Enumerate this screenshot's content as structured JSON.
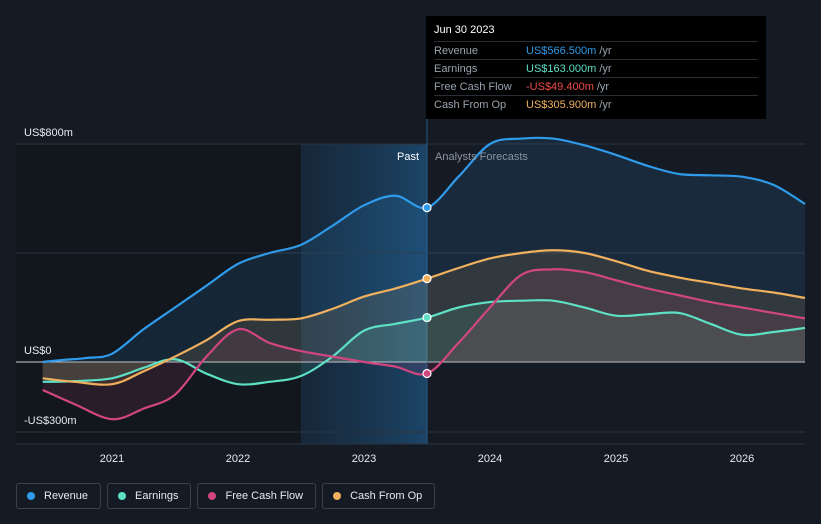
{
  "chart_data": {
    "type": "line",
    "title": "",
    "xlabel": "",
    "ylabel": "",
    "ylim": [
      -300,
      800
    ],
    "y_tick_labels": [
      {
        "value": 800,
        "label": "US$800m"
      },
      {
        "value": 0,
        "label": "US$0"
      },
      {
        "value": -300,
        "label": "-US$300m"
      }
    ],
    "x_range": [
      2020.35,
      2026.5
    ],
    "x_ticks": [
      {
        "value": 2021,
        "label": "2021"
      },
      {
        "value": 2022,
        "label": "2022"
      },
      {
        "value": 2023,
        "label": "2023"
      },
      {
        "value": 2024,
        "label": "2024"
      },
      {
        "value": 2025,
        "label": "2025"
      },
      {
        "value": 2026,
        "label": "2026"
      }
    ],
    "divider_x": 2023.5,
    "highlight_start_x": 2022.5,
    "past_label": "Past",
    "forecast_label": "Analysts Forecasts",
    "series": [
      {
        "name": "Revenue",
        "color": "#2f9bea",
        "x": [
          2020.45,
          2020.6,
          2020.8,
          2021.0,
          2021.25,
          2021.5,
          2021.75,
          2022.0,
          2022.25,
          2022.5,
          2022.75,
          2023.0,
          2023.25,
          2023.5,
          2023.75,
          2024.0,
          2024.25,
          2024.5,
          2024.75,
          2025.0,
          2025.25,
          2025.5,
          2025.75,
          2026.0,
          2026.25,
          2026.5
        ],
        "values": [
          0,
          7,
          15,
          30,
          120,
          200,
          280,
          360,
          400,
          430,
          500,
          575,
          610,
          566.5,
          680,
          800,
          820,
          820,
          795,
          760,
          720,
          690,
          685,
          680,
          650,
          580
        ]
      },
      {
        "name": "Earnings",
        "color": "#5de0c4",
        "x": [
          2020.45,
          2020.7,
          2021.0,
          2021.25,
          2021.5,
          2021.75,
          2022.0,
          2022.25,
          2022.5,
          2022.75,
          2023.0,
          2023.25,
          2023.5,
          2023.75,
          2024.0,
          2024.25,
          2024.5,
          2024.75,
          2025.0,
          2025.25,
          2025.5,
          2025.75,
          2026.0,
          2026.25,
          2026.5
        ],
        "values": [
          -85,
          -82,
          -70,
          -25,
          10,
          -50,
          -95,
          -85,
          -60,
          20,
          115,
          140,
          163,
          200,
          220,
          225,
          225,
          200,
          170,
          175,
          180,
          140,
          100,
          110,
          125
        ]
      },
      {
        "name": "Free Cash Flow",
        "color": "#d1467f",
        "x": [
          2020.45,
          2020.7,
          2021.0,
          2021.25,
          2021.5,
          2021.75,
          2022.0,
          2022.25,
          2022.5,
          2022.75,
          2023.0,
          2023.25,
          2023.5,
          2023.75,
          2024.0,
          2024.25,
          2024.5,
          2024.75,
          2025.0,
          2025.25,
          2025.5,
          2025.75,
          2026.0,
          2026.25,
          2026.5
        ],
        "values": [
          -120,
          -180,
          -245,
          -200,
          -140,
          20,
          120,
          70,
          40,
          20,
          0,
          -20,
          -49.4,
          70,
          200,
          320,
          340,
          330,
          300,
          270,
          245,
          220,
          200,
          180,
          160
        ]
      },
      {
        "name": "Cash From Op",
        "color": "#f0b05e",
        "x": [
          2020.45,
          2020.7,
          2021.0,
          2021.25,
          2021.5,
          2021.75,
          2022.0,
          2022.25,
          2022.5,
          2022.75,
          2023.0,
          2023.25,
          2023.5,
          2023.75,
          2024.0,
          2024.25,
          2024.5,
          2024.75,
          2025.0,
          2025.25,
          2025.5,
          2025.75,
          2026.0,
          2026.25,
          2026.5
        ],
        "values": [
          -70,
          -85,
          -95,
          -40,
          20,
          80,
          150,
          155,
          160,
          195,
          240,
          270,
          305.9,
          345,
          380,
          400,
          410,
          400,
          370,
          335,
          310,
          290,
          270,
          255,
          235
        ]
      }
    ]
  },
  "tooltip": {
    "date": "Jun 30 2023",
    "rows": [
      {
        "label": "Revenue",
        "value": "US$566.500m",
        "unit": "/yr",
        "color": "#2f9bea"
      },
      {
        "label": "Earnings",
        "value": "US$163.000m",
        "unit": "/yr",
        "color": "#5de0c4"
      },
      {
        "label": "Free Cash Flow",
        "value": "-US$49.400m",
        "unit": "/yr",
        "color": "#ef4b4b"
      },
      {
        "label": "Cash From Op",
        "value": "US$305.900m",
        "unit": "/yr",
        "color": "#f0b05e"
      }
    ]
  },
  "legend": [
    {
      "label": "Revenue",
      "color": "#2f9bea"
    },
    {
      "label": "Earnings",
      "color": "#5de0c4"
    },
    {
      "label": "Free Cash Flow",
      "color": "#d1467f"
    },
    {
      "label": "Cash From Op",
      "color": "#f0b05e"
    }
  ]
}
